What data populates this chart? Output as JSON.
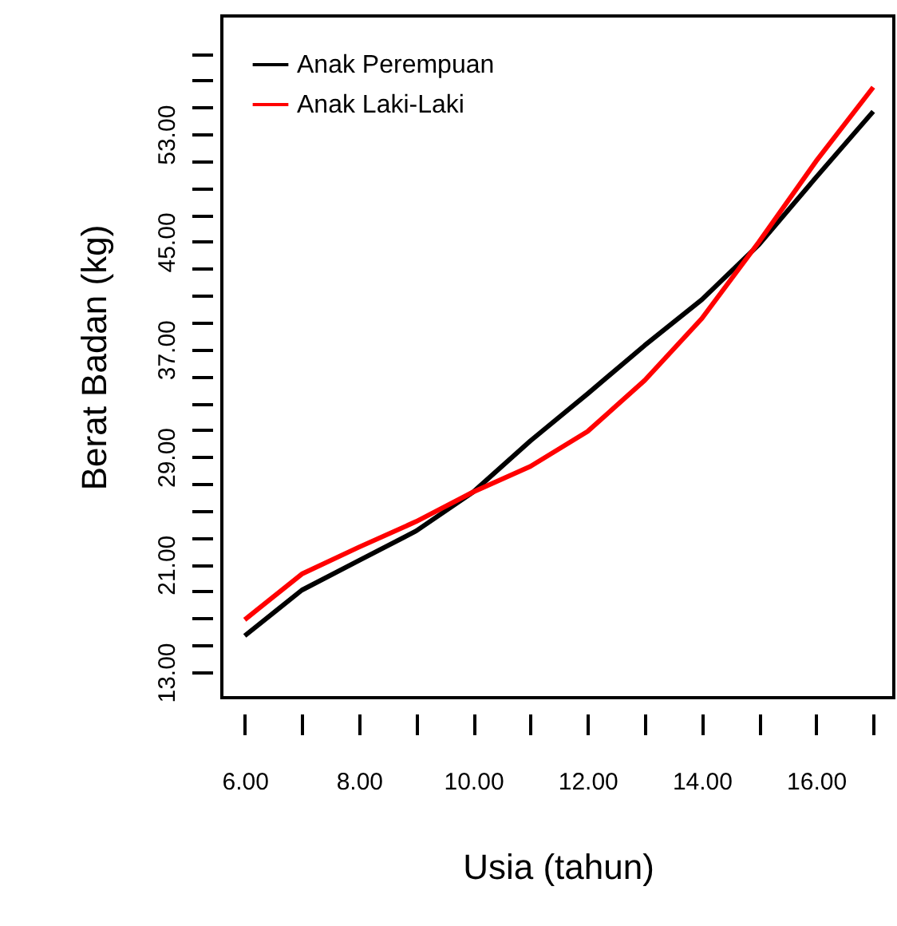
{
  "chart_data": {
    "type": "line",
    "xlabel": "Usia (tahun)",
    "ylabel": "Berat Badan (kg)",
    "x": [
      6,
      7,
      8,
      9,
      10,
      11,
      12,
      13,
      14,
      15,
      16,
      17
    ],
    "series": [
      {
        "name": "Anak Perempuan",
        "color": "#000000",
        "values": [
          15.7,
          19.1,
          21.3,
          23.5,
          26.4,
          30.2,
          33.7,
          37.3,
          40.7,
          44.8,
          49.8,
          54.7
        ]
      },
      {
        "name": "Anak Laki-Laki",
        "color": "#ff0000",
        "values": [
          16.9,
          20.3,
          22.3,
          24.2,
          26.4,
          28.3,
          30.9,
          34.7,
          39.3,
          45.0,
          51.0,
          56.5
        ]
      }
    ],
    "xlim": [
      5.6,
      17.36
    ],
    "ylim": [
      11.1,
      61.8
    ],
    "xticks": [
      {
        "value": 6,
        "label": "6.00"
      },
      {
        "value": 7,
        "label": null
      },
      {
        "value": 8,
        "label": "8.00"
      },
      {
        "value": 9,
        "label": null
      },
      {
        "value": 10,
        "label": "10.00"
      },
      {
        "value": 11,
        "label": null
      },
      {
        "value": 12,
        "label": "12.00"
      },
      {
        "value": 13,
        "label": null
      },
      {
        "value": 14,
        "label": "14.00"
      },
      {
        "value": 15,
        "label": null
      },
      {
        "value": 16,
        "label": "16.00"
      },
      {
        "value": 17,
        "label": null
      }
    ],
    "yticks": [
      {
        "value": 13,
        "label": "13.00"
      },
      {
        "value": 15,
        "label": null
      },
      {
        "value": 17,
        "label": null
      },
      {
        "value": 19,
        "label": null
      },
      {
        "value": 21,
        "label": "21.00"
      },
      {
        "value": 23,
        "label": null
      },
      {
        "value": 25,
        "label": null
      },
      {
        "value": 27,
        "label": null
      },
      {
        "value": 29,
        "label": "29.00"
      },
      {
        "value": 31,
        "label": null
      },
      {
        "value": 33,
        "label": null
      },
      {
        "value": 35,
        "label": null
      },
      {
        "value": 37,
        "label": "37.00"
      },
      {
        "value": 39,
        "label": null
      },
      {
        "value": 41,
        "label": null
      },
      {
        "value": 43,
        "label": null
      },
      {
        "value": 45,
        "label": "45.00"
      },
      {
        "value": 47,
        "label": null
      },
      {
        "value": 49,
        "label": null
      },
      {
        "value": 51,
        "label": null
      },
      {
        "value": 53,
        "label": "53.00"
      },
      {
        "value": 55,
        "label": null
      },
      {
        "value": 57,
        "label": null
      },
      {
        "value": 59,
        "label": null
      }
    ],
    "grid": false,
    "legend": "top left",
    "marker": "none",
    "line_style": "solid"
  }
}
